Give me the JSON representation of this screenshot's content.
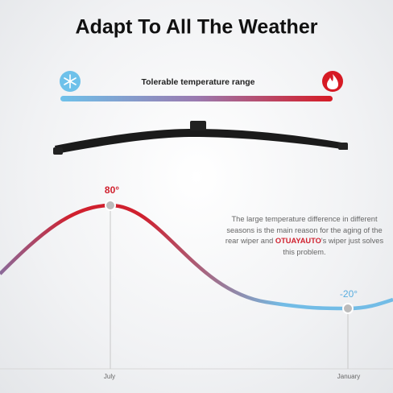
{
  "header": {
    "title": "Adapt To All The Weather"
  },
  "range_bar": {
    "label": "Tolerable temperature range"
  },
  "curve": {
    "peak": {
      "label": "80°",
      "month": "July"
    },
    "trough": {
      "label": "-20°",
      "month": "January"
    }
  },
  "description": {
    "parts": [
      "The large temperature difference in different seasons is the main reason for the aging of the rear wiper and ",
      "OTUAYAUTO",
      "'s wiper just solves this problem."
    ]
  }
}
